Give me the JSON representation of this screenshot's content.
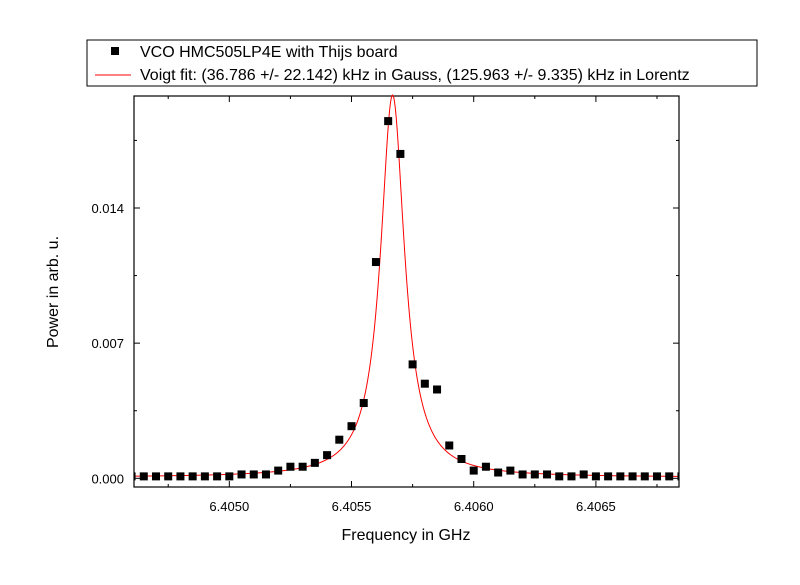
{
  "chart_data": {
    "type": "scatter",
    "xlabel": "Frequency in GHz",
    "ylabel": "Power in arb. u.",
    "xlim": [
      6.40461,
      6.40684
    ],
    "ylim": [
      -0.00045,
      0.0198
    ],
    "x_ticks": [
      6.405,
      6.4055,
      6.406,
      6.4065
    ],
    "x_tick_labels": [
      "6.4050",
      "6.4055",
      "6.4060",
      "6.4065"
    ],
    "y_ticks": [
      0.0,
      0.007,
      0.014
    ],
    "y_tick_labels": [
      "0.000",
      "0.007",
      "0.014"
    ],
    "grid": false,
    "legend_position": "top",
    "series": [
      {
        "name": "VCO HMC505LP4E with Thijs board",
        "kind": "scatter",
        "marker": "square",
        "color": "#000000",
        "x": [
          6.4046,
          6.40465,
          6.4047,
          6.40475,
          6.4048,
          6.40485,
          6.4049,
          6.40495,
          6.405,
          6.40505,
          6.4051,
          6.40515,
          6.4052,
          6.40525,
          6.4053,
          6.40535,
          6.4054,
          6.40545,
          6.4055,
          6.40555,
          6.4056,
          6.40565,
          6.4057,
          6.40575,
          6.4058,
          6.40585,
          6.4059,
          6.40595,
          6.406,
          6.40605,
          6.4061,
          6.40615,
          6.4062,
          6.40625,
          6.4063,
          6.40635,
          6.4064,
          6.40645,
          6.4065,
          6.40655,
          6.4066,
          6.40665,
          6.4067,
          6.40675,
          6.4068,
          6.40685
        ],
        "y": [
          0.0001,
          0.0001,
          0.0001,
          0.0001,
          0.0001,
          0.0001,
          0.0001,
          0.0001,
          0.0001,
          0.0002,
          0.0002,
          0.0002,
          0.0004,
          0.0006,
          0.0006,
          0.0008,
          0.0012,
          0.002,
          0.0027,
          0.0039,
          0.0112,
          0.0185,
          0.0168,
          0.0059,
          0.0049,
          0.0046,
          0.0017,
          0.001,
          0.0004,
          0.0006,
          0.0003,
          0.0004,
          0.0002,
          0.0002,
          0.0002,
          0.0001,
          0.0001,
          0.0002,
          0.0001,
          0.0001,
          0.0001,
          0.0001,
          0.0001,
          0.0001,
          0.0001,
          0.0001
        ]
      },
      {
        "name": "Voigt fit: (36.786 +/- 22.142) kHz in Gauss, (125.963 +/- 9.335) kHz in Lorentz",
        "kind": "line",
        "color": "#ff0000",
        "model": "lorentzian",
        "center": 6.405668,
        "gamma": 5.95e-05,
        "amplitude": 0.0198,
        "offset": 5e-05
      }
    ]
  }
}
